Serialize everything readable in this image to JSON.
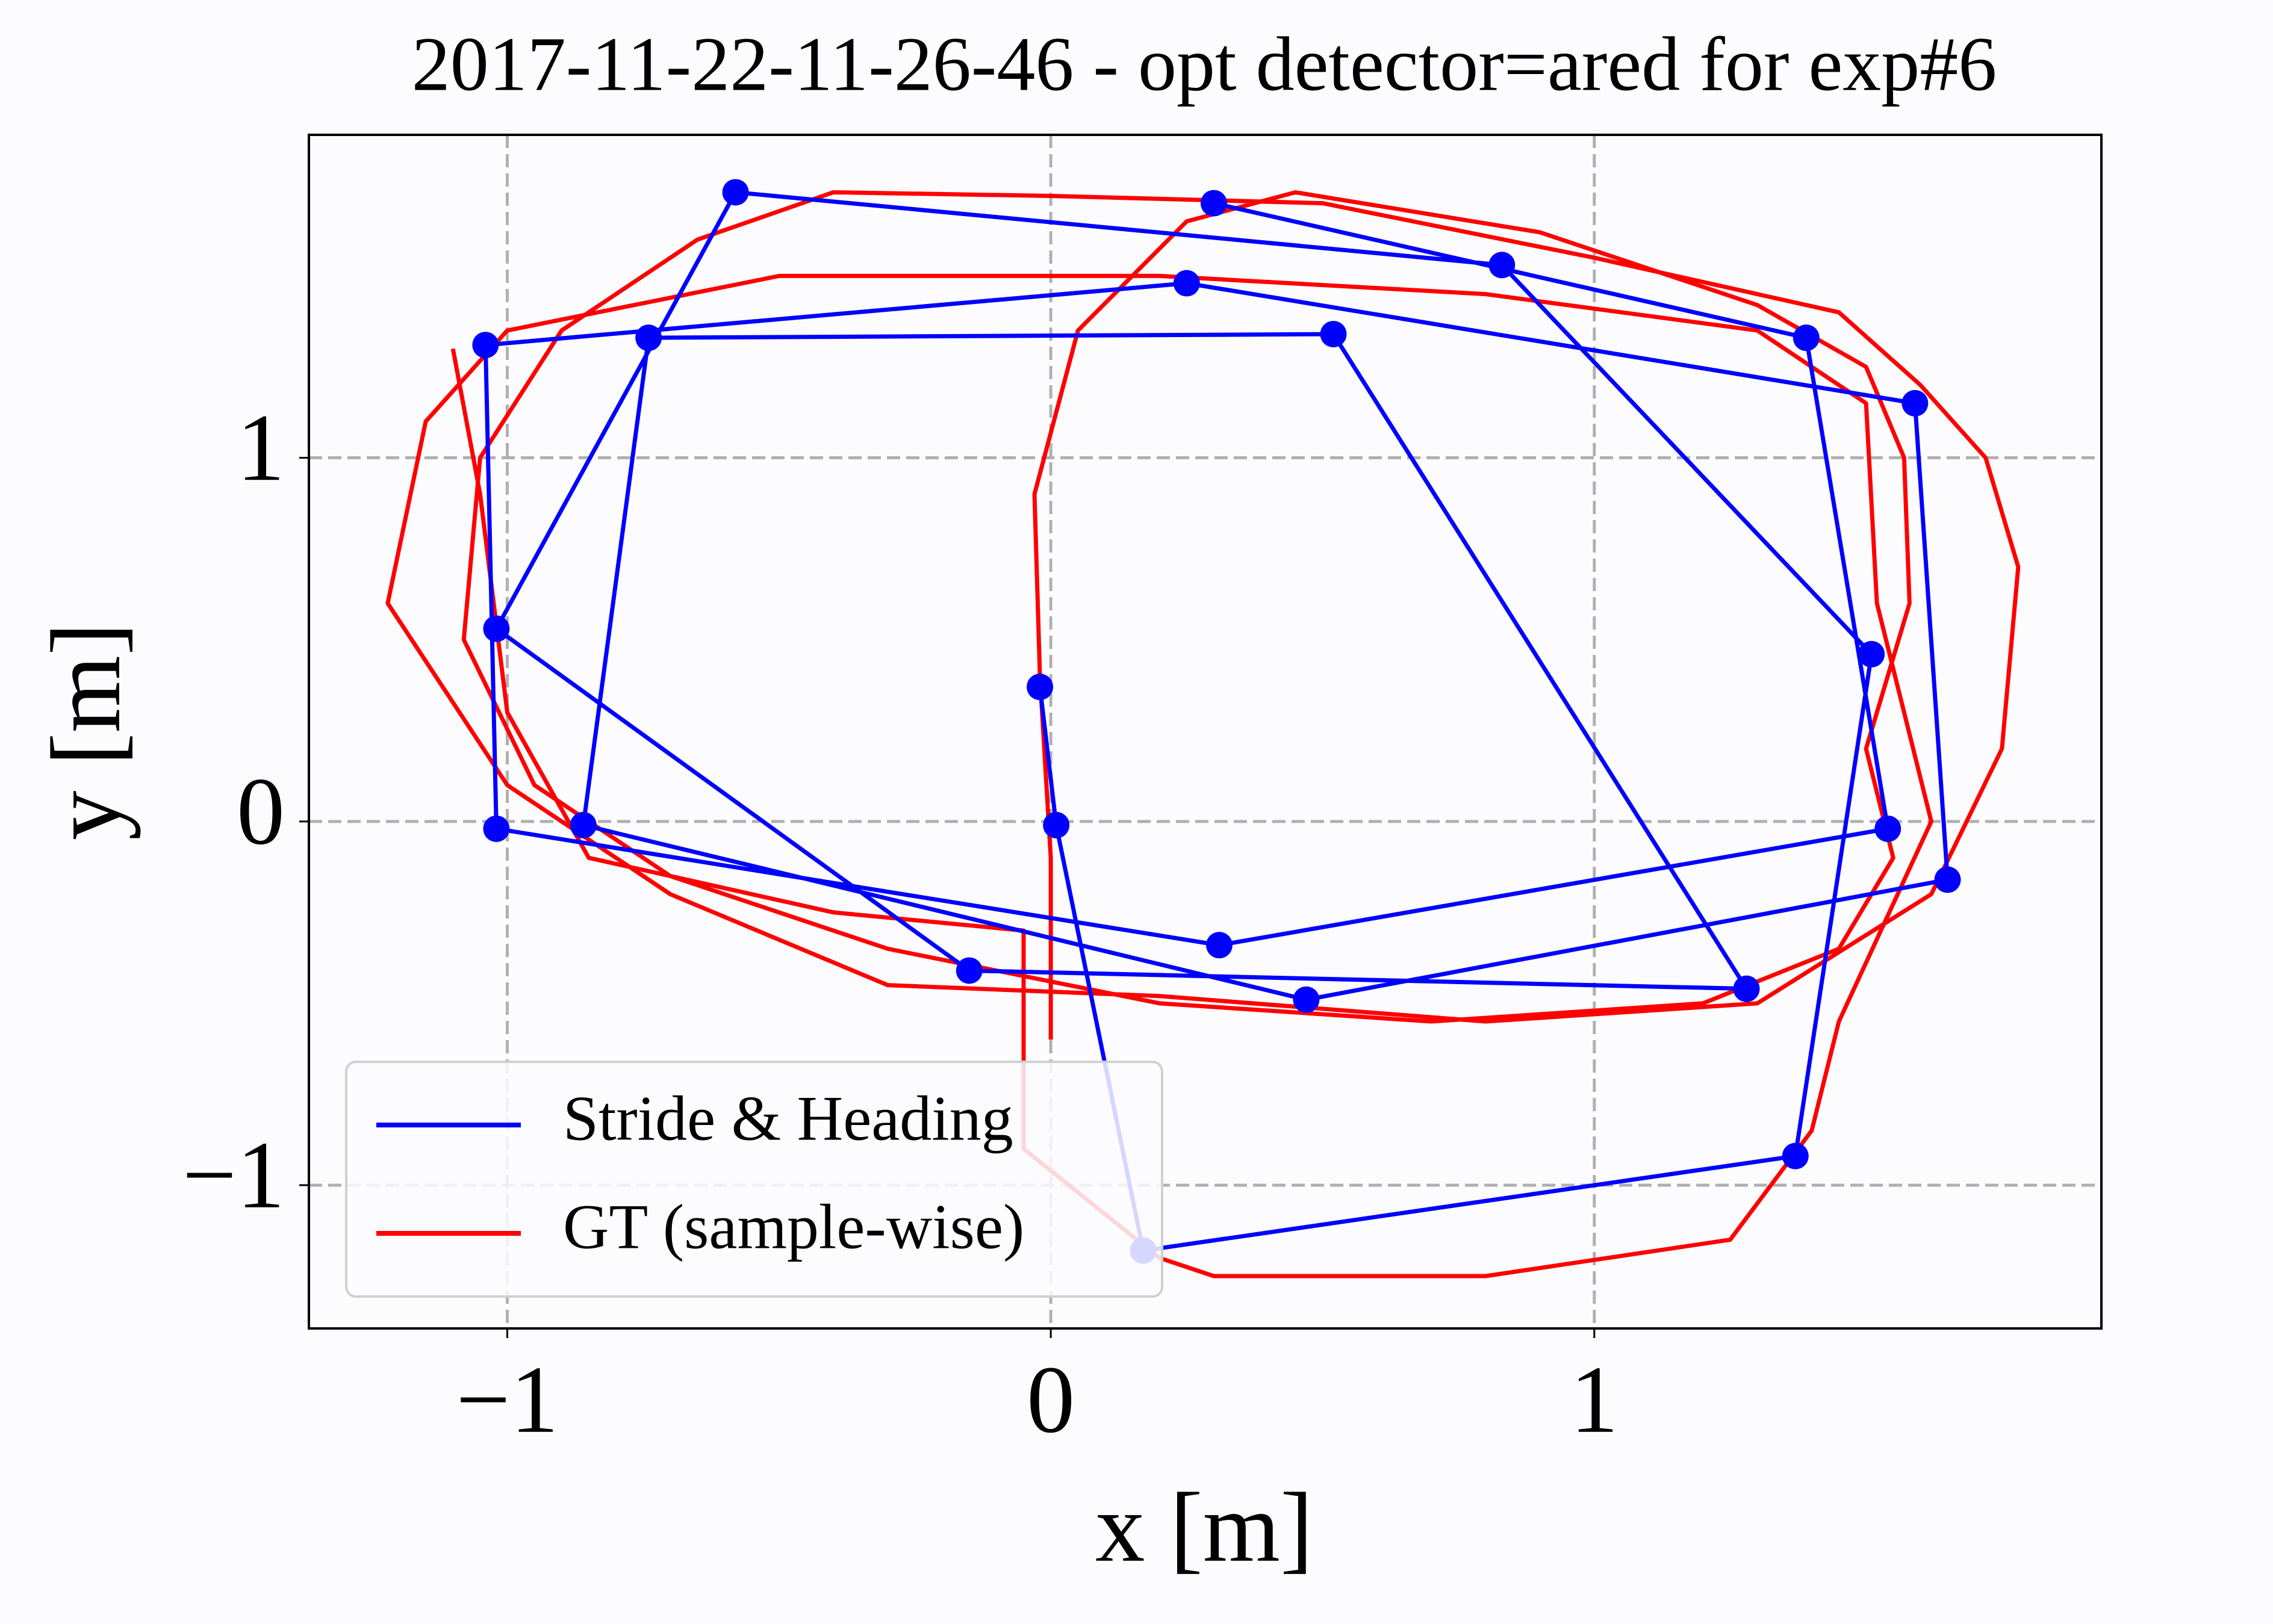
{
  "chart_data": {
    "type": "line",
    "title": "2017-11-22-11-26-46 - opt detector=ared for exp#6",
    "x_label": "x [m]",
    "y_label": "y [m]",
    "xlim": [
      -1.365,
      1.933
    ],
    "ylim": [
      -1.394,
      1.888
    ],
    "xticks": [
      {
        "value": -1,
        "label": "−1"
      },
      0,
      1
    ],
    "yticks": [
      {
        "value": -1,
        "label": "−1"
      },
      0,
      1
    ],
    "grid": true,
    "legend": "lower left",
    "series": [
      {
        "name": "Stride & Heading",
        "color": "#0000ff",
        "marker": true,
        "x": [
          -0.02,
          0.01,
          0.17,
          1.37,
          1.51,
          0.83,
          -0.58,
          -1.02,
          -0.15,
          1.28,
          0.52,
          -0.74,
          -0.86,
          0.47,
          1.65,
          1.59,
          0.25,
          -1.04,
          -1.02,
          0.31,
          1.54,
          1.39,
          0.3
        ],
        "values": [
          0.37,
          -0.01,
          -1.18,
          -0.92,
          0.46,
          1.53,
          1.73,
          0.53,
          -0.41,
          -0.46,
          1.34,
          1.33,
          -0.01,
          -0.49,
          -0.16,
          1.15,
          1.48,
          1.31,
          -0.02,
          -0.34,
          -0.02,
          1.33,
          1.7
        ]
      },
      {
        "name": "GT (sample-wise)",
        "color": "#ff0000",
        "marker": false,
        "x": [
          0.0,
          0.0,
          -0.02,
          -0.03,
          0.05,
          0.25,
          0.45,
          0.9,
          1.3,
          1.5,
          1.57,
          1.58,
          1.5,
          1.55,
          1.45,
          1.2,
          0.7,
          0.2,
          -0.3,
          -0.7,
          -0.95,
          -1.08,
          -1.05,
          -0.9,
          -0.65,
          -0.4,
          0.0,
          0.5,
          1.0,
          1.45,
          1.6,
          1.72,
          1.78,
          1.75,
          1.62,
          1.3,
          0.8,
          0.2,
          -0.3,
          -0.7,
          -1.0,
          -1.22,
          -1.15,
          -1.0,
          -0.5,
          0.2,
          0.8,
          1.3,
          1.5,
          1.52,
          1.62,
          1.45,
          1.4,
          1.25,
          0.8,
          0.3,
          0.2,
          -0.05,
          -0.05,
          -0.4,
          -0.85,
          -1.0,
          -1.05,
          -1.1
        ],
        "values": [
          -0.6,
          -0.1,
          0.4,
          0.9,
          1.35,
          1.65,
          1.73,
          1.62,
          1.42,
          1.25,
          1.0,
          0.6,
          0.2,
          -0.1,
          -0.35,
          -0.5,
          -0.55,
          -0.5,
          -0.35,
          -0.15,
          0.1,
          0.5,
          1.0,
          1.35,
          1.6,
          1.73,
          1.72,
          1.7,
          1.55,
          1.4,
          1.2,
          1.0,
          0.7,
          0.2,
          -0.2,
          -0.5,
          -0.55,
          -0.48,
          -0.45,
          -0.2,
          0.1,
          0.6,
          1.1,
          1.35,
          1.5,
          1.5,
          1.45,
          1.35,
          1.15,
          0.6,
          0.0,
          -0.55,
          -0.85,
          -1.15,
          -1.25,
          -1.25,
          -1.2,
          -0.9,
          -0.3,
          -0.25,
          -0.1,
          0.3,
          0.9,
          1.3
        ]
      }
    ]
  }
}
